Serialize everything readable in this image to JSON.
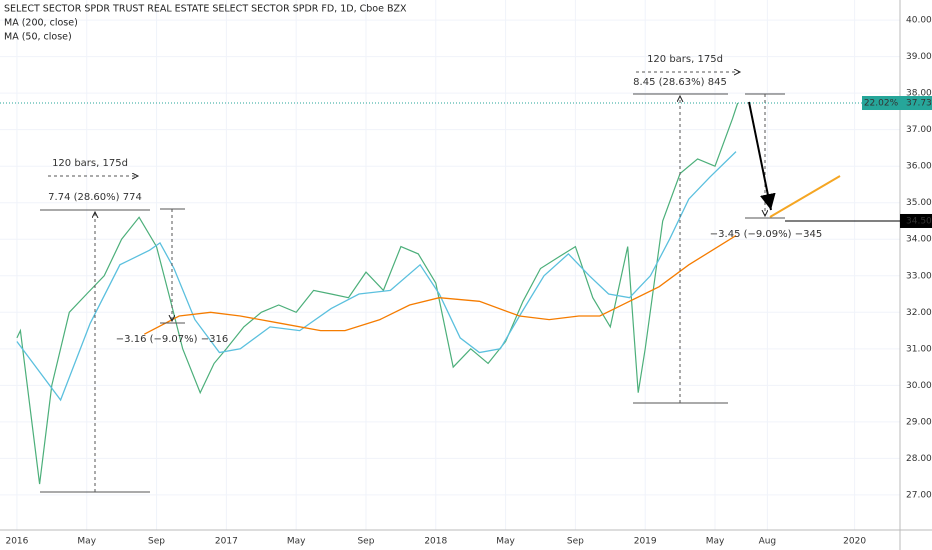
{
  "header": [
    "SELECT SECTOR SPDR TRUST REAL ESTATE SELECT SECTOR SPDR FD, 1D, Cboe BZX",
    "MA (200, close)",
    "MA (50, close)"
  ],
  "chart_data": {
    "type": "line",
    "xlim": [
      -0.97,
      50.6
    ],
    "ylim": [
      26.04,
      40.55
    ],
    "xticks": [
      {
        "value": 0,
        "label": "2016"
      },
      {
        "value": 4,
        "label": "May"
      },
      {
        "value": 8,
        "label": "Sep"
      },
      {
        "value": 12,
        "label": "2017"
      },
      {
        "value": 16,
        "label": "May"
      },
      {
        "value": 20,
        "label": "Sep"
      },
      {
        "value": 24,
        "label": "2018"
      },
      {
        "value": 28,
        "label": "May"
      },
      {
        "value": 32,
        "label": "Sep"
      },
      {
        "value": 36,
        "label": "2019"
      },
      {
        "value": 40,
        "label": "May"
      },
      {
        "value": 43,
        "label": "Aug"
      },
      {
        "value": 48,
        "label": "2020"
      }
    ],
    "yticks": [
      {
        "value": 27,
        "label": "27.00"
      },
      {
        "value": 28,
        "label": "28.00"
      },
      {
        "value": 29,
        "label": "29.00"
      },
      {
        "value": 30,
        "label": "30.00"
      },
      {
        "value": 31,
        "label": "31.00"
      },
      {
        "value": 32,
        "label": "32.00"
      },
      {
        "value": 33,
        "label": "33.00"
      },
      {
        "value": 34,
        "label": "34.00"
      },
      {
        "value": 35,
        "label": "35.00"
      },
      {
        "value": 36,
        "label": "36.00"
      },
      {
        "value": 37,
        "label": "37.00"
      },
      {
        "value": 38,
        "label": "38.00"
      },
      {
        "value": 39,
        "label": "39.00"
      },
      {
        "value": 40,
        "label": "40.00"
      }
    ],
    "grid": true,
    "series": [
      {
        "color": "#4caf7a",
        "x": [
          0,
          0.2,
          1.3,
          2,
          3,
          4,
          5,
          6,
          7,
          8,
          8.7,
          9.5,
          10.5,
          11.3,
          12,
          13,
          14,
          15,
          16,
          17,
          18,
          19,
          20,
          21,
          22,
          23,
          24,
          25,
          26,
          27,
          28,
          29,
          30,
          31,
          32,
          33,
          34,
          35,
          35.6,
          36,
          37,
          38,
          39,
          40,
          41,
          41.3
        ],
        "values": [
          31.3,
          31.5,
          27.3,
          30,
          32,
          32.5,
          33,
          34,
          34.6,
          33.8,
          32.5,
          31,
          29.8,
          30.6,
          31,
          31.6,
          32,
          32.2,
          32,
          32.6,
          32.5,
          32.4,
          33.1,
          32.6,
          33.8,
          33.6,
          32.8,
          30.5,
          31,
          30.6,
          31.2,
          32.3,
          33.2,
          33.5,
          33.8,
          32.4,
          31.6,
          33.8,
          29.8,
          31,
          34.5,
          35.8,
          36.2,
          36,
          37.3,
          37.73
        ]
      },
      {
        "color": "#5bc0de",
        "x": [
          0,
          2.5,
          4.2,
          5.9,
          7.6,
          8.2,
          9,
          10.2,
          11.6,
          12.8,
          14.5,
          16.2,
          18,
          19.6,
          21.4,
          23.1,
          24.2,
          25.4,
          26.5,
          27.7,
          28.8,
          30.2,
          31.6,
          32.8,
          33.9,
          35.1,
          36.3,
          37.4,
          38.5,
          39.7,
          41.2
        ],
        "values": [
          31.2,
          29.6,
          31.7,
          33.3,
          33.7,
          33.9,
          33.2,
          31.8,
          30.9,
          31,
          31.6,
          31.5,
          32.1,
          32.5,
          32.6,
          33.3,
          32.5,
          31.3,
          30.9,
          31,
          31.9,
          33,
          33.6,
          33,
          32.5,
          32.4,
          33,
          34,
          35.1,
          35.7,
          36.4
        ]
      },
      {
        "color": "#f57c00",
        "x": [
          7.3,
          9.3,
          11.1,
          12.8,
          15.1,
          17.4,
          18.8,
          20.8,
          22.5,
          24.2,
          26.5,
          28.8,
          30.5,
          32.2,
          33.4,
          35.1,
          36.8,
          38.5,
          41.2
        ],
        "values": [
          31.4,
          31.9,
          32,
          31.9,
          31.7,
          31.5,
          31.5,
          31.8,
          32.2,
          32.4,
          32.3,
          31.9,
          31.8,
          31.9,
          31.9,
          32.3,
          32.7,
          33.3,
          34.1
        ]
      }
    ],
    "last_price": {
      "value": 37.73,
      "label": "37.73",
      "change_label": "22.02%"
    },
    "hline": {
      "value": 34.5,
      "label": "34.50"
    },
    "annotations": [
      "120 bars, 175d",
      "7.74 (28.60%) 774",
      "−3.16 (−9.07%) −316",
      "120 bars, 175d",
      "8.45 (28.63%) 845",
      "−3.45 (−9.09%) −345"
    ]
  }
}
